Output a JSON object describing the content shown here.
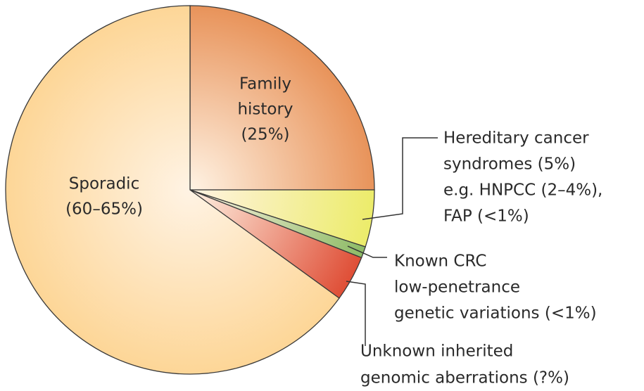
{
  "chart_data": {
    "type": "pie",
    "labels": [
      [
        "Family",
        "history",
        "(25%)"
      ],
      [
        "Hereditary cancer",
        "syndromes (5%)",
        "e.g. HNPCC (2–4%),",
        "FAP (<1%)"
      ],
      [
        "Known CRC",
        "low-penetrance",
        "genetic variations (<1%)"
      ],
      [
        "Unknown inherited",
        "genomic aberrations (?%)"
      ],
      [
        "Sporadic",
        "(60–65%)"
      ]
    ],
    "values": [
      25,
      5,
      1,
      4,
      65
    ],
    "colors": [
      "#e8935a",
      "#ecec6a",
      "#8dbb66",
      "#df4e36",
      "#fdd697"
    ]
  }
}
